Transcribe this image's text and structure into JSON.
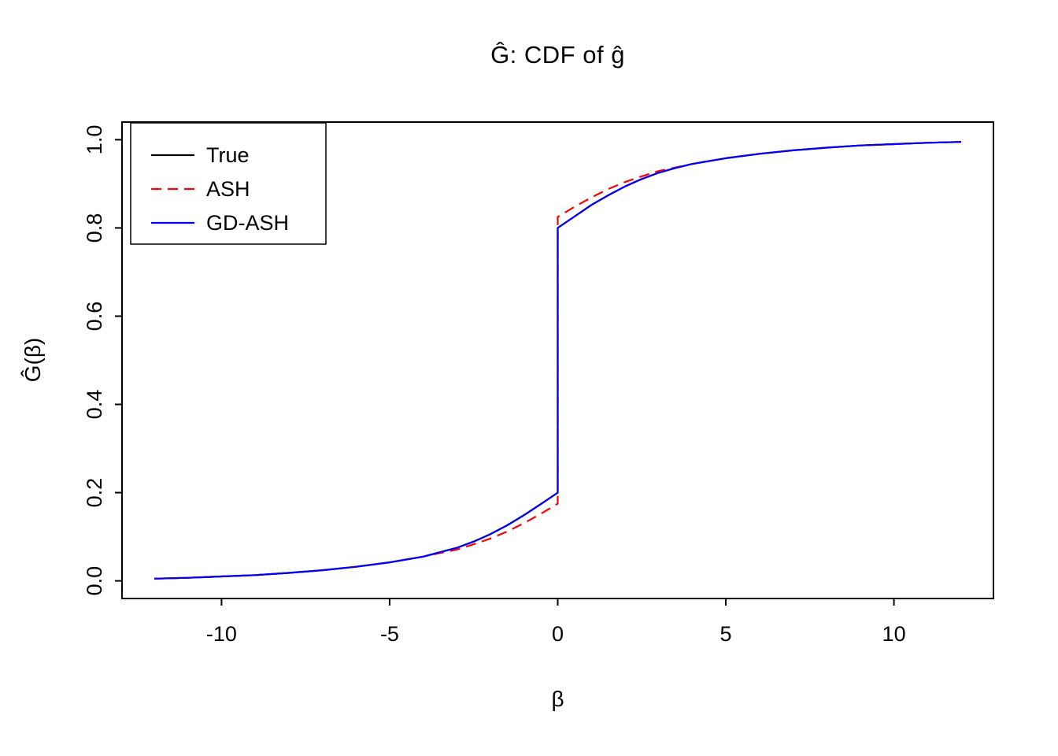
{
  "page": {
    "background": "#ffffff"
  },
  "chart_data": {
    "type": "line",
    "title": "Ĝ: CDF of ĝ",
    "xlabel": "β",
    "ylabel": "Ĝ(β)",
    "xlim": [
      -12.96,
      12.96
    ],
    "ylim": [
      -0.04,
      1.04
    ],
    "xticks": [
      -10,
      -5,
      0,
      5,
      10
    ],
    "xtick_labels": [
      "-10",
      "-5",
      "0",
      "5",
      "10"
    ],
    "yticks": [
      0.0,
      0.2,
      0.4,
      0.6,
      0.8,
      1.0
    ],
    "ytick_labels": [
      "0.0",
      "0.2",
      "0.4",
      "0.6",
      "0.8",
      "1.0"
    ],
    "grid": false,
    "legend_position": "topleft",
    "axis_color": "#000000",
    "series": [
      {
        "name": "True",
        "color": "#000000",
        "dash": "solid",
        "x": [
          -12,
          -11,
          -10,
          -9,
          -8,
          -7,
          -6,
          -5,
          -4,
          -3,
          -2.5,
          -2,
          -1.5,
          -1,
          -0.5,
          0,
          0,
          0.5,
          1,
          1.5,
          2,
          2.5,
          3,
          3.5,
          4,
          5,
          6,
          7,
          8,
          9,
          10,
          11,
          12
        ],
        "y": [
          0.005,
          0.007,
          0.01,
          0.013,
          0.018,
          0.024,
          0.032,
          0.042,
          0.055,
          0.075,
          0.089,
          0.106,
          0.126,
          0.149,
          0.174,
          0.2,
          0.8,
          0.826,
          0.852,
          0.874,
          0.894,
          0.911,
          0.925,
          0.936,
          0.945,
          0.958,
          0.968,
          0.976,
          0.982,
          0.987,
          0.99,
          0.993,
          0.995
        ]
      },
      {
        "name": "ASH",
        "color": "#ff0000",
        "dash": "dashed",
        "x": [
          -12,
          -11,
          -10,
          -9,
          -8,
          -7,
          -6,
          -5,
          -4,
          -3,
          -2.5,
          -2,
          -1.5,
          -1,
          -0.5,
          0,
          0,
          0.5,
          1,
          1.5,
          2,
          2.5,
          3,
          3.5,
          4,
          5,
          6,
          7,
          8,
          9,
          10,
          11,
          12
        ],
        "y": [
          0.005,
          0.007,
          0.01,
          0.013,
          0.018,
          0.024,
          0.032,
          0.042,
          0.055,
          0.071,
          0.083,
          0.096,
          0.112,
          0.131,
          0.152,
          0.175,
          0.825,
          0.848,
          0.869,
          0.888,
          0.904,
          0.917,
          0.929,
          0.937,
          0.945,
          0.958,
          0.968,
          0.976,
          0.982,
          0.987,
          0.99,
          0.993,
          0.995
        ]
      },
      {
        "name": "GD-ASH",
        "color": "#0000ff",
        "dash": "solid",
        "x": [
          -12,
          -11,
          -10,
          -9,
          -8,
          -7,
          -6,
          -5,
          -4,
          -3,
          -2.5,
          -2,
          -1.5,
          -1,
          -0.5,
          0,
          0,
          0.5,
          1,
          1.5,
          2,
          2.5,
          3,
          3.5,
          4,
          5,
          6,
          7,
          8,
          9,
          10,
          11,
          12
        ],
        "y": [
          0.005,
          0.007,
          0.01,
          0.013,
          0.018,
          0.024,
          0.032,
          0.042,
          0.055,
          0.075,
          0.089,
          0.106,
          0.126,
          0.149,
          0.174,
          0.2,
          0.8,
          0.826,
          0.852,
          0.874,
          0.894,
          0.911,
          0.925,
          0.936,
          0.945,
          0.958,
          0.968,
          0.976,
          0.982,
          0.987,
          0.99,
          0.993,
          0.995
        ]
      }
    ]
  }
}
